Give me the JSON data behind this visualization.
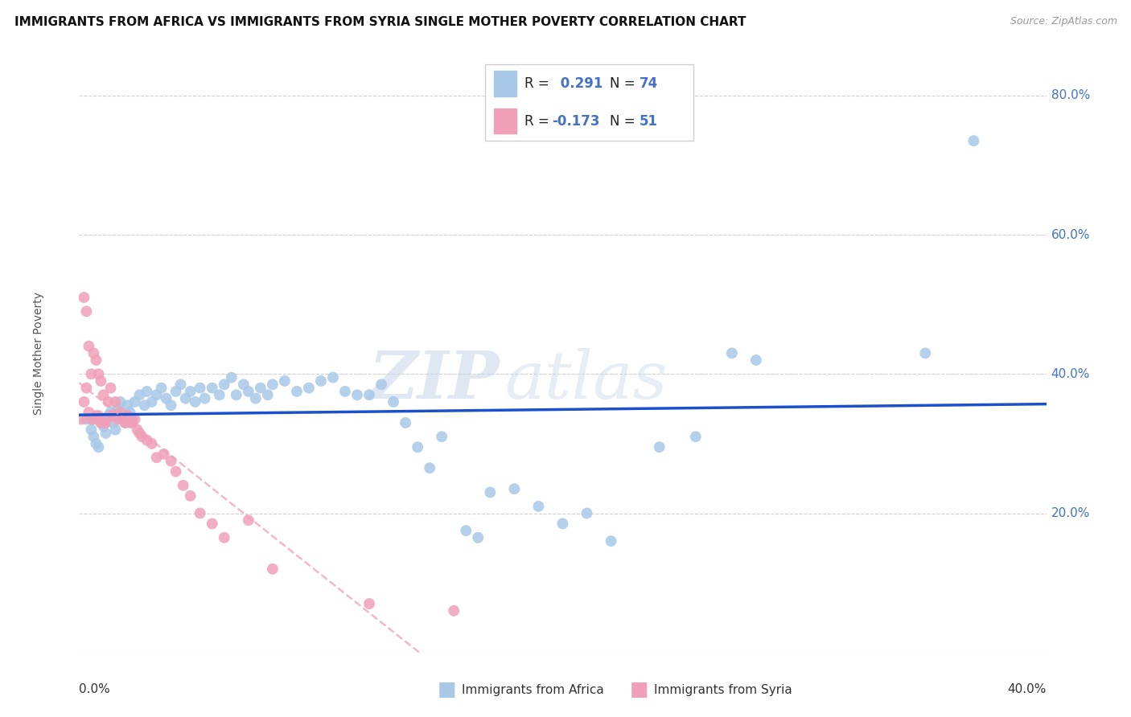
{
  "title": "IMMIGRANTS FROM AFRICA VS IMMIGRANTS FROM SYRIA SINGLE MOTHER POVERTY CORRELATION CHART",
  "source": "Source: ZipAtlas.com",
  "ylabel": "Single Mother Poverty",
  "ytick_positions": [
    0.0,
    0.2,
    0.4,
    0.6,
    0.8
  ],
  "ytick_labels": [
    "",
    "20.0%",
    "40.0%",
    "60.0%",
    "80.0%"
  ],
  "xlim": [
    0.0,
    0.4
  ],
  "ylim": [
    0.0,
    0.86
  ],
  "africa_color": "#a8c8e8",
  "syria_color": "#f0a0b8",
  "africa_line_color": "#1a50cc",
  "syria_line_color": "#f0a0b8",
  "africa_R": 0.291,
  "africa_N": 74,
  "syria_R": -0.173,
  "syria_N": 51,
  "africa_scatter_x": [
    0.003,
    0.005,
    0.006,
    0.007,
    0.008,
    0.009,
    0.01,
    0.011,
    0.012,
    0.013,
    0.014,
    0.015,
    0.016,
    0.017,
    0.018,
    0.019,
    0.02,
    0.021,
    0.022,
    0.023,
    0.025,
    0.027,
    0.028,
    0.03,
    0.032,
    0.034,
    0.036,
    0.038,
    0.04,
    0.042,
    0.044,
    0.046,
    0.048,
    0.05,
    0.052,
    0.055,
    0.058,
    0.06,
    0.063,
    0.065,
    0.068,
    0.07,
    0.073,
    0.075,
    0.078,
    0.08,
    0.085,
    0.09,
    0.095,
    0.1,
    0.105,
    0.11,
    0.115,
    0.12,
    0.125,
    0.13,
    0.135,
    0.14,
    0.145,
    0.15,
    0.16,
    0.165,
    0.17,
    0.18,
    0.19,
    0.2,
    0.21,
    0.22,
    0.24,
    0.255,
    0.27,
    0.28,
    0.35,
    0.37
  ],
  "africa_scatter_y": [
    0.335,
    0.32,
    0.31,
    0.3,
    0.295,
    0.33,
    0.325,
    0.315,
    0.34,
    0.345,
    0.33,
    0.32,
    0.35,
    0.36,
    0.34,
    0.33,
    0.355,
    0.345,
    0.335,
    0.36,
    0.37,
    0.355,
    0.375,
    0.36,
    0.37,
    0.38,
    0.365,
    0.355,
    0.375,
    0.385,
    0.365,
    0.375,
    0.36,
    0.38,
    0.365,
    0.38,
    0.37,
    0.385,
    0.395,
    0.37,
    0.385,
    0.375,
    0.365,
    0.38,
    0.37,
    0.385,
    0.39,
    0.375,
    0.38,
    0.39,
    0.395,
    0.375,
    0.37,
    0.37,
    0.385,
    0.36,
    0.33,
    0.295,
    0.265,
    0.31,
    0.175,
    0.165,
    0.23,
    0.235,
    0.21,
    0.185,
    0.2,
    0.16,
    0.295,
    0.31,
    0.43,
    0.42,
    0.43,
    0.735
  ],
  "syria_scatter_x": [
    0.001,
    0.002,
    0.002,
    0.003,
    0.003,
    0.004,
    0.004,
    0.005,
    0.005,
    0.006,
    0.006,
    0.007,
    0.007,
    0.008,
    0.008,
    0.009,
    0.009,
    0.01,
    0.01,
    0.011,
    0.012,
    0.013,
    0.013,
    0.014,
    0.015,
    0.016,
    0.017,
    0.018,
    0.019,
    0.02,
    0.021,
    0.022,
    0.023,
    0.024,
    0.025,
    0.026,
    0.028,
    0.03,
    0.032,
    0.035,
    0.038,
    0.04,
    0.043,
    0.046,
    0.05,
    0.055,
    0.06,
    0.07,
    0.08,
    0.12,
    0.155
  ],
  "syria_scatter_y": [
    0.335,
    0.36,
    0.51,
    0.38,
    0.49,
    0.345,
    0.44,
    0.335,
    0.4,
    0.335,
    0.43,
    0.34,
    0.42,
    0.34,
    0.4,
    0.33,
    0.39,
    0.33,
    0.37,
    0.33,
    0.36,
    0.34,
    0.38,
    0.34,
    0.36,
    0.335,
    0.345,
    0.335,
    0.33,
    0.34,
    0.33,
    0.33,
    0.335,
    0.32,
    0.315,
    0.31,
    0.305,
    0.3,
    0.28,
    0.285,
    0.275,
    0.26,
    0.24,
    0.225,
    0.2,
    0.185,
    0.165,
    0.19,
    0.12,
    0.07,
    0.06
  ],
  "watermark_zip": "ZIP",
  "watermark_atlas": "atlas",
  "background_color": "#ffffff",
  "grid_color": "#d0d0d0",
  "right_axis_color": "#4472c4",
  "legend_label_1": "R =  0.291   N = 74",
  "legend_label_2": "R = -0.173   N = 51"
}
